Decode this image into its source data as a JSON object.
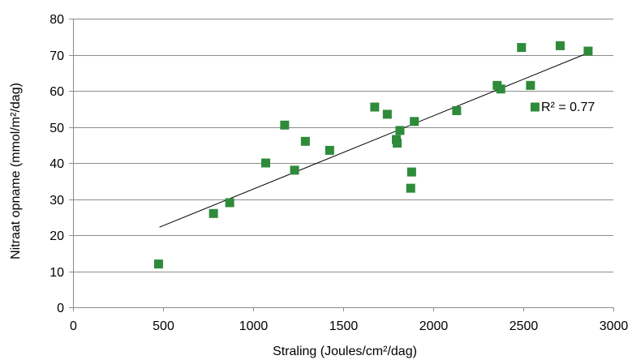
{
  "chart_data": {
    "type": "scatter",
    "xlabel": "Straling (Joules/cm²/dag)",
    "ylabel": "Nitraat opname (mmol/m²/dag)",
    "xlim": [
      0,
      3000
    ],
    "ylim": [
      0,
      80
    ],
    "xticks": [
      "0",
      "500",
      "1000",
      "1500",
      "2000",
      "2500",
      "3000"
    ],
    "yticks": [
      "0",
      "10",
      "20",
      "30",
      "40",
      "50",
      "60",
      "70",
      "80"
    ],
    "grid": "horizontal",
    "marker_color": "#2e8b3a",
    "trendline_color": "#000000",
    "trendline": {
      "x": [
        480,
        2860
      ],
      "y": [
        22.2,
        70.5
      ]
    },
    "annotation": "R² = 0.77",
    "points": [
      {
        "x": 475,
        "y": 12
      },
      {
        "x": 780,
        "y": 26
      },
      {
        "x": 870,
        "y": 29
      },
      {
        "x": 1070,
        "y": 40
      },
      {
        "x": 1175,
        "y": 50.5
      },
      {
        "x": 1230,
        "y": 38
      },
      {
        "x": 1290,
        "y": 46
      },
      {
        "x": 1425,
        "y": 43.5
      },
      {
        "x": 1675,
        "y": 55.5
      },
      {
        "x": 1745,
        "y": 53.5
      },
      {
        "x": 1795,
        "y": 46.5
      },
      {
        "x": 1800,
        "y": 45.5
      },
      {
        "x": 1815,
        "y": 49
      },
      {
        "x": 1875,
        "y": 33
      },
      {
        "x": 1880,
        "y": 37.5
      },
      {
        "x": 1895,
        "y": 51.5
      },
      {
        "x": 2130,
        "y": 54.5
      },
      {
        "x": 2355,
        "y": 61.5
      },
      {
        "x": 2375,
        "y": 60.5
      },
      {
        "x": 2490,
        "y": 72
      },
      {
        "x": 2540,
        "y": 61.5
      },
      {
        "x": 2565,
        "y": 55.5
      },
      {
        "x": 2705,
        "y": 72.5
      },
      {
        "x": 2860,
        "y": 71
      }
    ]
  }
}
